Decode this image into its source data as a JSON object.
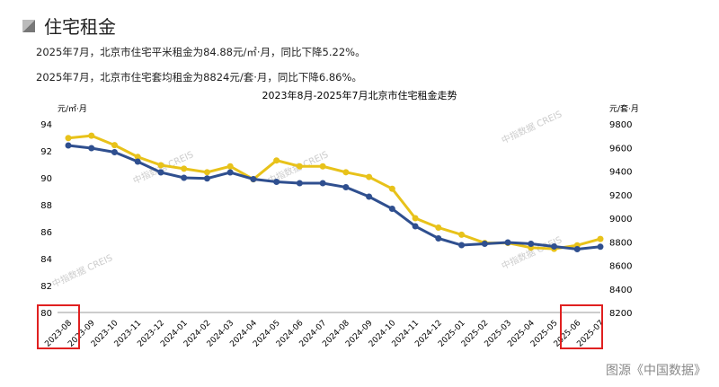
{
  "header": {
    "title": "住宅租金"
  },
  "summary": [
    "2025年7月，北京市住宅平米租金为84.88元/㎡·月，同比下降5.22%。",
    "2025年7月，北京市住宅套均租金为8824元/套·月，同比下降6.86%。"
  ],
  "watermark": "中指数据 CREIS",
  "source": "图源《中国数据》",
  "chart_data": {
    "type": "line",
    "title": "2023年8月-2025年7月北京市住宅租金走势",
    "ylabel_left": "元/㎡·月",
    "ylabel_right": "元/套·月",
    "ylim_left": [
      80,
      94
    ],
    "yticks_left": [
      80,
      82,
      84,
      86,
      88,
      90,
      92,
      94
    ],
    "ylim_right": [
      8200,
      9800
    ],
    "yticks_right": [
      8200,
      8400,
      8600,
      8800,
      9000,
      9200,
      9400,
      9600,
      9800
    ],
    "categories": [
      "2023-08",
      "2023-09",
      "2023-10",
      "2023-11",
      "2023-12",
      "2024-01",
      "2024-02",
      "2024-03",
      "2024-04",
      "2024-05",
      "2024-06",
      "2024-07",
      "2024-08",
      "2024-09",
      "2024-10",
      "2024-11",
      "2024-12",
      "2025-01",
      "2025-02",
      "2025-03",
      "2025-04",
      "2025-05",
      "2025-06",
      "2025-07"
    ],
    "series": [
      {
        "axis": "left",
        "color": "#2f4f8f",
        "values": [
          92.4,
          92.2,
          91.9,
          91.2,
          90.4,
          90.0,
          89.95,
          90.4,
          89.9,
          89.7,
          89.6,
          89.6,
          89.3,
          88.6,
          87.7,
          86.4,
          85.5,
          85.0,
          85.1,
          85.2,
          85.1,
          84.9,
          84.7,
          84.88
        ]
      },
      {
        "axis": "right",
        "color": "#e8c21a",
        "values": [
          9680,
          9700,
          9620,
          9520,
          9450,
          9420,
          9390,
          9440,
          9330,
          9490,
          9440,
          9440,
          9390,
          9350,
          9250,
          9000,
          8920,
          8860,
          8790,
          8790,
          8750,
          8740,
          8770,
          8824
        ]
      }
    ],
    "highlighted": [
      "2023-08",
      "2025-07"
    ],
    "highlight_color": "#e02020",
    "grid": false
  }
}
